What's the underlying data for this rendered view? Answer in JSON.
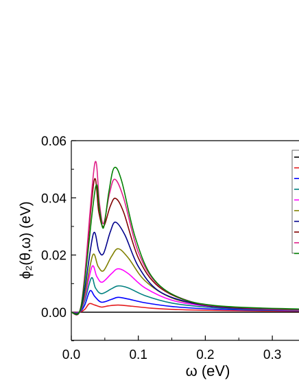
{
  "chart_data": {
    "type": "line",
    "xlabel": "ω (eV)",
    "ylabel": "ϕ₂(θ,ω) (eV)",
    "xlim": [
      0,
      0.34
    ],
    "ylim": [
      -0.01,
      0.06
    ],
    "xticks": [
      0.0,
      0.1,
      0.2,
      0.3
    ],
    "xtick_labels": [
      "0.0",
      "0.1",
      "0.2",
      "0.3"
    ],
    "yticks": [
      0.0,
      0.02,
      0.04,
      0.06
    ],
    "ytick_labels": [
      "0.00",
      "0.02",
      "0.04",
      "0.06"
    ],
    "grid": false,
    "legend": "right, partially cropped (line samples only)",
    "series": [
      {
        "color": "#000000",
        "values": [
          [
            0,
            0
          ],
          [
            0.34,
            0
          ]
        ]
      },
      {
        "color": "#e41a1c",
        "values": [
          [
            0,
            0
          ],
          [
            0.012,
            0
          ],
          [
            0.02,
            0.001
          ],
          [
            0.027,
            0.003
          ],
          [
            0.035,
            0.0025
          ],
          [
            0.045,
            0.0018
          ],
          [
            0.055,
            0.0022
          ],
          [
            0.07,
            0.0025
          ],
          [
            0.09,
            0.0021
          ],
          [
            0.12,
            0.0014
          ],
          [
            0.16,
            0.0009
          ],
          [
            0.22,
            0.0006
          ],
          [
            0.34,
            0.0003
          ]
        ]
      },
      {
        "color": "#0000ff",
        "values": [
          [
            0,
            0
          ],
          [
            0.012,
            0
          ],
          [
            0.02,
            0.0025
          ],
          [
            0.028,
            0.0075
          ],
          [
            0.035,
            0.0055
          ],
          [
            0.045,
            0.0035
          ],
          [
            0.06,
            0.0045
          ],
          [
            0.07,
            0.0052
          ],
          [
            0.085,
            0.0046
          ],
          [
            0.11,
            0.0033
          ],
          [
            0.15,
            0.002
          ],
          [
            0.2,
            0.0012
          ],
          [
            0.26,
            0.0008
          ],
          [
            0.34,
            0.0005
          ]
        ]
      },
      {
        "color": "#008080",
        "values": [
          [
            0,
            0
          ],
          [
            0.012,
            0
          ],
          [
            0.02,
            0.004
          ],
          [
            0.03,
            0.012
          ],
          [
            0.036,
            0.0085
          ],
          [
            0.045,
            0.0065
          ],
          [
            0.06,
            0.0082
          ],
          [
            0.07,
            0.0092
          ],
          [
            0.085,
            0.0085
          ],
          [
            0.11,
            0.0058
          ],
          [
            0.15,
            0.0032
          ],
          [
            0.2,
            0.0018
          ],
          [
            0.26,
            0.001
          ],
          [
            0.34,
            0.0006
          ]
        ]
      },
      {
        "color": "#ff00ff",
        "values": [
          [
            0,
            0
          ],
          [
            0.012,
            0
          ],
          [
            0.02,
            0.005
          ],
          [
            0.031,
            0.016
          ],
          [
            0.038,
            0.0125
          ],
          [
            0.046,
            0.0105
          ],
          [
            0.06,
            0.0135
          ],
          [
            0.07,
            0.0152
          ],
          [
            0.085,
            0.0135
          ],
          [
            0.11,
            0.0085
          ],
          [
            0.15,
            0.0042
          ],
          [
            0.2,
            0.0022
          ],
          [
            0.26,
            0.0012
          ],
          [
            0.34,
            0.0007
          ]
        ]
      },
      {
        "color": "#808000",
        "values": [
          [
            0,
            0
          ],
          [
            0.012,
            0
          ],
          [
            0.02,
            0.006
          ],
          [
            0.032,
            0.02
          ],
          [
            0.04,
            0.016
          ],
          [
            0.048,
            0.0145
          ],
          [
            0.06,
            0.0195
          ],
          [
            0.07,
            0.0222
          ],
          [
            0.085,
            0.019
          ],
          [
            0.11,
            0.011
          ],
          [
            0.15,
            0.005
          ],
          [
            0.2,
            0.0025
          ],
          [
            0.26,
            0.0013
          ],
          [
            0.34,
            0.0008
          ]
        ]
      },
      {
        "color": "#00008b",
        "values": [
          [
            0,
            0
          ],
          [
            0.012,
            0
          ],
          [
            0.02,
            0.008
          ],
          [
            0.033,
            0.0275
          ],
          [
            0.041,
            0.0215
          ],
          [
            0.048,
            0.0205
          ],
          [
            0.058,
            0.028
          ],
          [
            0.066,
            0.0315
          ],
          [
            0.08,
            0.027
          ],
          [
            0.1,
            0.016
          ],
          [
            0.13,
            0.0075
          ],
          [
            0.18,
            0.0032
          ],
          [
            0.24,
            0.0015
          ],
          [
            0.34,
            0.0009
          ]
        ]
      },
      {
        "color": "#800000",
        "values": [
          [
            0,
            0
          ],
          [
            0.012,
            0
          ],
          [
            0.02,
            0.012
          ],
          [
            0.034,
            0.046
          ],
          [
            0.041,
            0.035
          ],
          [
            0.048,
            0.03
          ],
          [
            0.058,
            0.037
          ],
          [
            0.066,
            0.0398
          ],
          [
            0.078,
            0.035
          ],
          [
            0.1,
            0.019
          ],
          [
            0.13,
            0.009
          ],
          [
            0.18,
            0.0035
          ],
          [
            0.24,
            0.0017
          ],
          [
            0.34,
            0.001
          ]
        ]
      },
      {
        "color": "#e0218a",
        "values": [
          [
            0,
            0
          ],
          [
            0.012,
            0
          ],
          [
            0.02,
            0.013
          ],
          [
            0.035,
            0.052
          ],
          [
            0.042,
            0.038
          ],
          [
            0.048,
            0.031
          ],
          [
            0.057,
            0.0415
          ],
          [
            0.065,
            0.0465
          ],
          [
            0.078,
            0.04
          ],
          [
            0.1,
            0.021
          ],
          [
            0.13,
            0.0095
          ],
          [
            0.18,
            0.0036
          ],
          [
            0.24,
            0.0018
          ],
          [
            0.34,
            0.001
          ]
        ]
      },
      {
        "color": "#008000",
        "values": [
          [
            0,
            0
          ],
          [
            0.012,
            0
          ],
          [
            0.02,
            0.011
          ],
          [
            0.036,
            0.0435
          ],
          [
            0.042,
            0.036
          ],
          [
            0.048,
            0.0295
          ],
          [
            0.056,
            0.042
          ],
          [
            0.064,
            0.0505
          ],
          [
            0.075,
            0.046
          ],
          [
            0.095,
            0.0265
          ],
          [
            0.12,
            0.0125
          ],
          [
            0.16,
            0.0052
          ],
          [
            0.22,
            0.0022
          ],
          [
            0.34,
            0.0011
          ]
        ]
      }
    ]
  }
}
